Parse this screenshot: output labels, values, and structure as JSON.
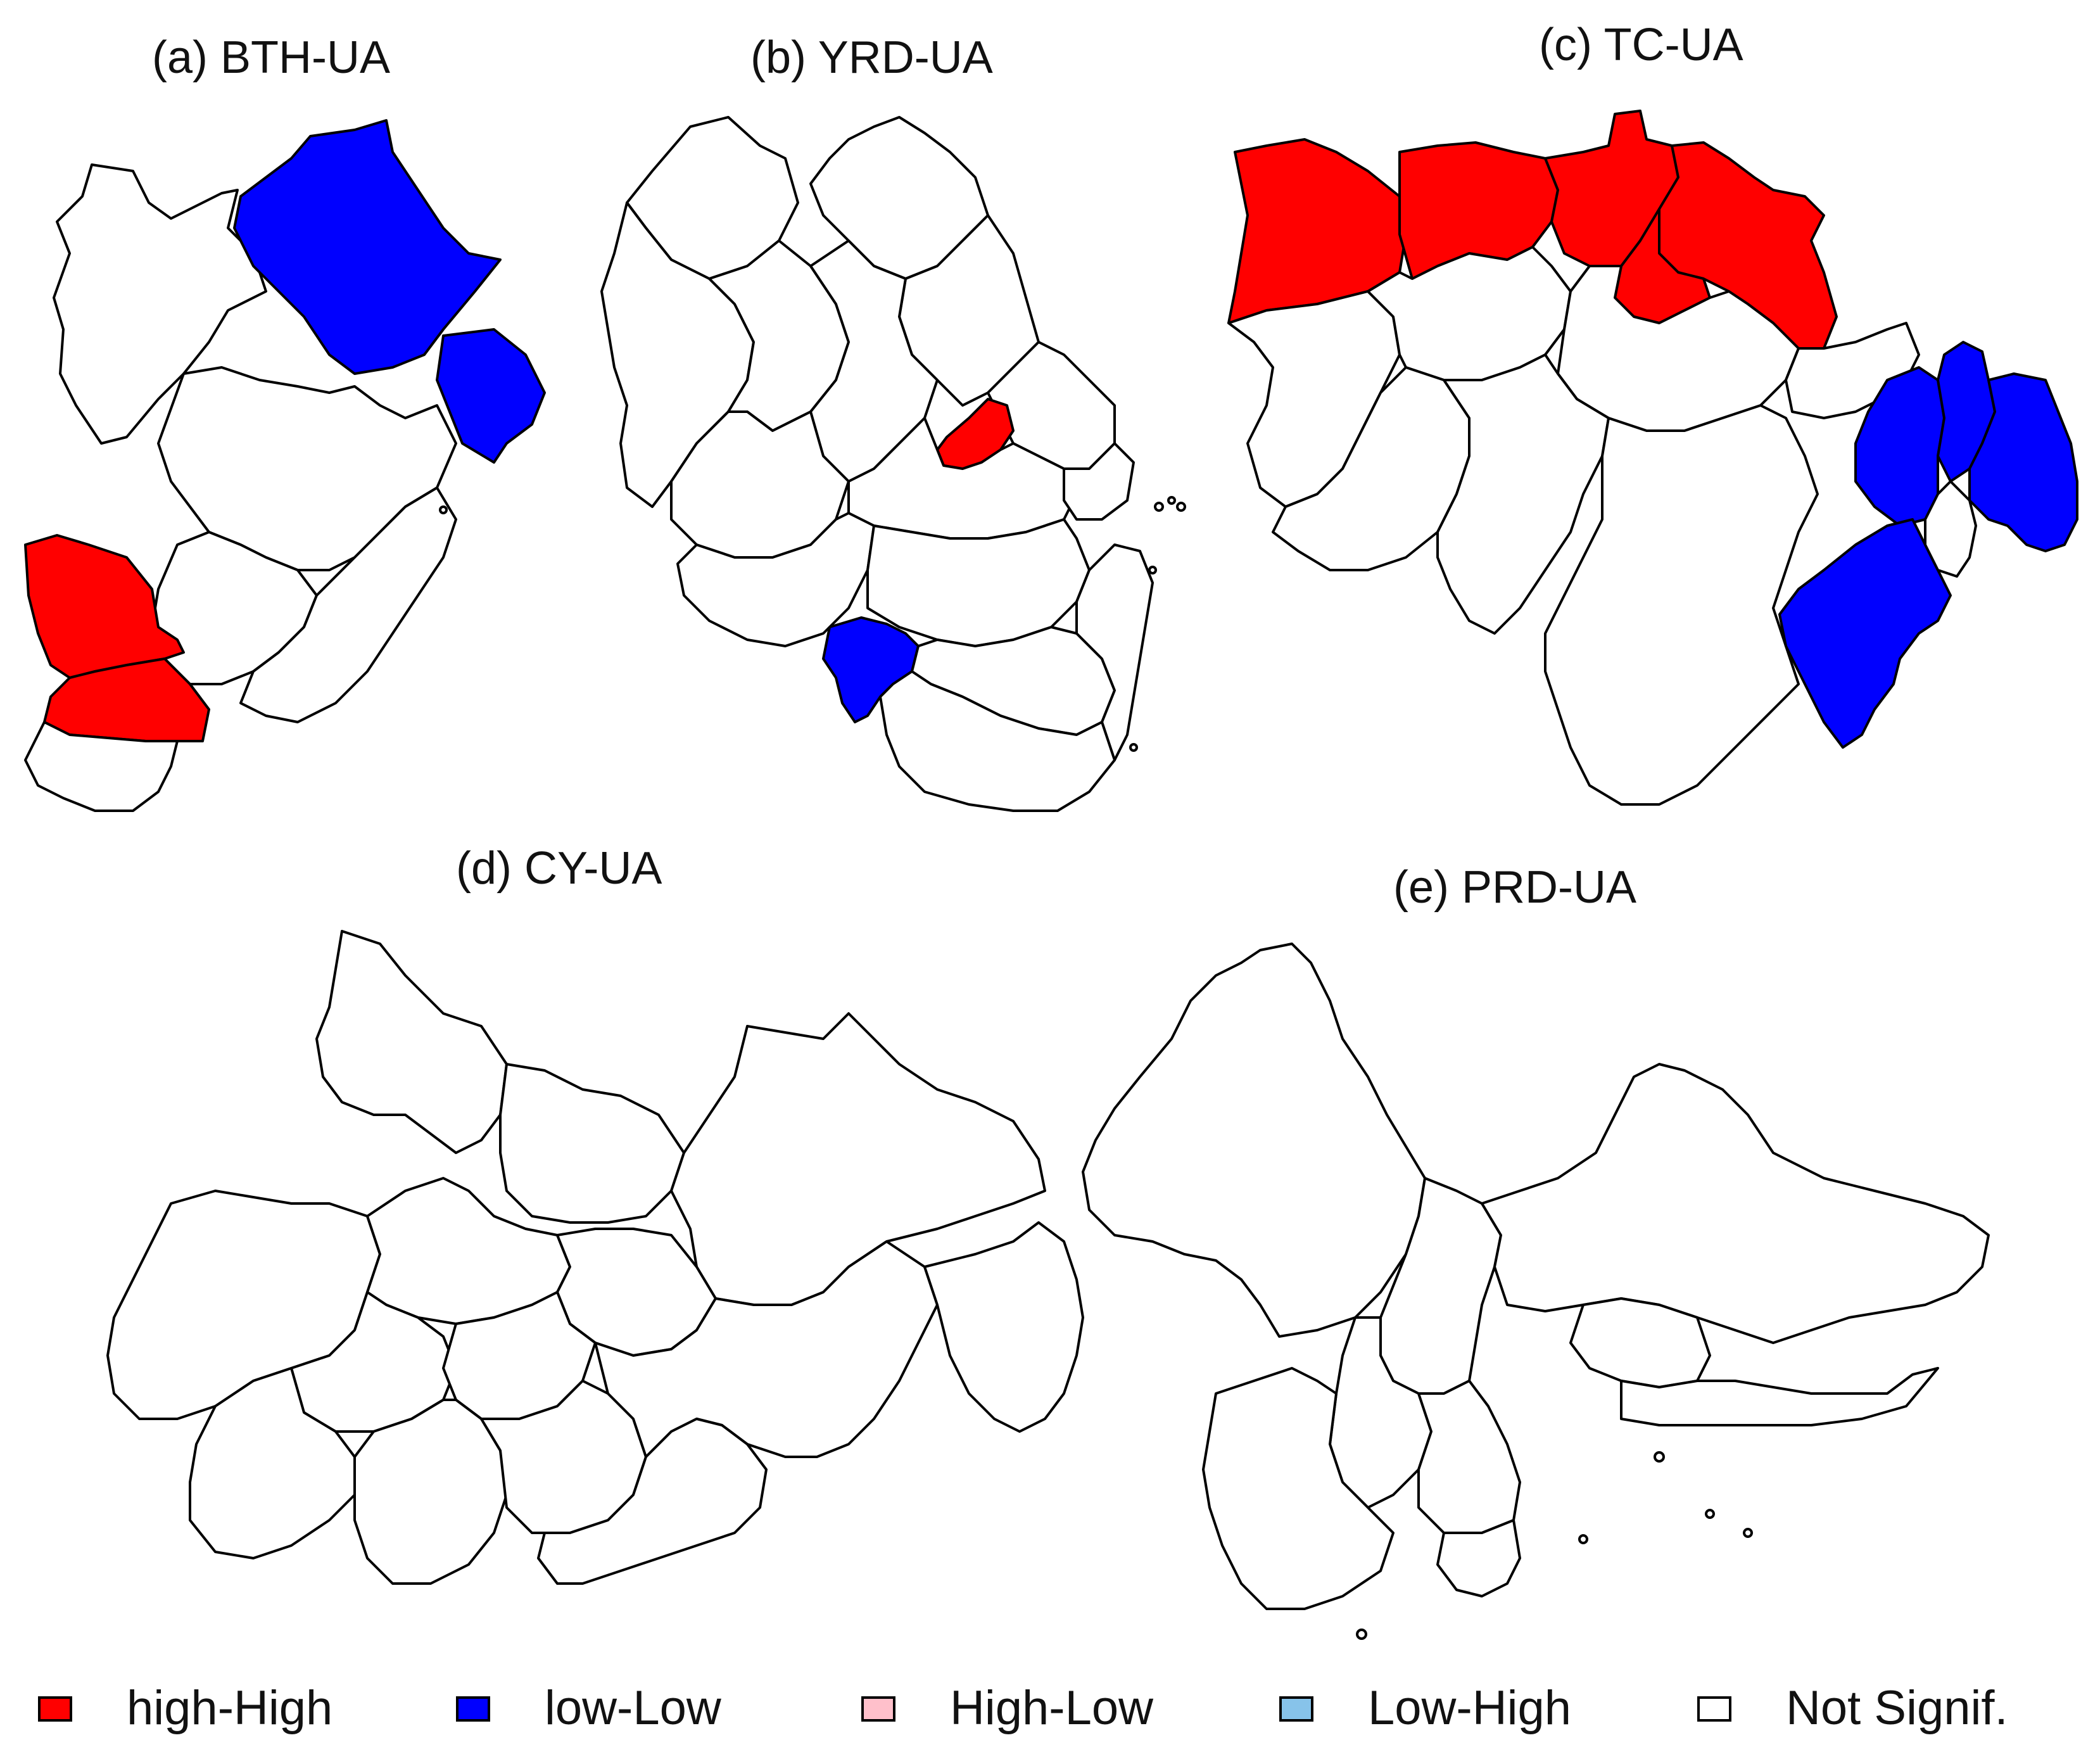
{
  "panels": [
    {
      "id": "a",
      "title": "(a) BTH-UA"
    },
    {
      "id": "b",
      "title": "(b) YRD-UA"
    },
    {
      "id": "c",
      "title": "(c) TC-UA"
    },
    {
      "id": "d",
      "title": "(d) CY-UA"
    },
    {
      "id": "e",
      "title": "(e) PRD-UA"
    }
  ],
  "legend": [
    {
      "label": "high-High",
      "color": "#ff0000"
    },
    {
      "label": "low-Low",
      "color": "#0000ff"
    },
    {
      "label": "High-Low",
      "color": "#ffc0cb"
    },
    {
      "label": "Low-High",
      "color": "#87c3ea"
    },
    {
      "label": "Not Signif.",
      "color": "#ffffff"
    }
  ],
  "colors": {
    "high_high": "#ff0000",
    "low_low": "#0000ff",
    "not_signif": "#ffffff",
    "border": "#000000"
  }
}
